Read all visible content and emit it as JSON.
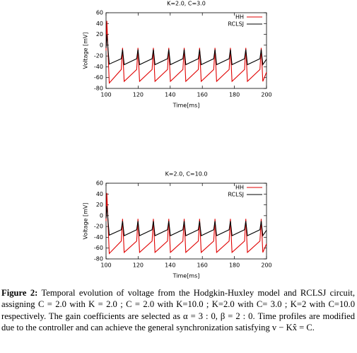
{
  "chart_data": [
    {
      "type": "line",
      "title": "K=2.0, C=3.0",
      "x_label": "Time[ms]",
      "y_label": "Voltage [mV]",
      "x": [
        100,
        100.5,
        102,
        109.5,
        110.3,
        111.3,
        119.1,
        119.9,
        120.9,
        128.7,
        129.5,
        130.5,
        138.3,
        139.1,
        140.1,
        147.9,
        148.7,
        149.7,
        157.5,
        158.3,
        159.3,
        167.1,
        167.9,
        168.9,
        176.7,
        177.5,
        178.5,
        186.3,
        187.1,
        188.1,
        195.9,
        196.7,
        197.7,
        200
      ],
      "series": [
        {
          "name": "HH",
          "color": "#e00000",
          "values": [
            -10,
            45,
            -70,
            -45,
            -5,
            -67,
            -45,
            -5,
            -67,
            -45,
            -5,
            -67,
            -45,
            -5,
            -67,
            -45,
            -5,
            -67,
            -45,
            -5,
            -67,
            -45,
            -5,
            -67,
            -45,
            -5,
            -67,
            -45,
            -5,
            -67,
            -45,
            -5,
            -67,
            -50
          ]
        },
        {
          "name": "RCLSJ",
          "color": "#000000",
          "values": [
            -5,
            20,
            -35,
            -25,
            -8,
            -36,
            -25,
            -8,
            -36,
            -25,
            -8,
            -36,
            -25,
            -8,
            -36,
            -25,
            -8,
            -36,
            -25,
            -8,
            -36,
            -25,
            -8,
            -36,
            -25,
            -8,
            -36,
            -25,
            -8,
            -36,
            -25,
            -8,
            -36,
            -26
          ]
        }
      ],
      "xlim": [
        100,
        200
      ],
      "xticks": [
        100,
        120,
        140,
        160,
        180,
        200
      ],
      "ylim": [
        -80,
        60
      ],
      "yticks": [
        -80,
        -60,
        -40,
        -20,
        0,
        20,
        40,
        60
      ],
      "legend": "top-right"
    },
    {
      "type": "line",
      "title": "K=2.0, C=10.0",
      "x_label": "Time[ms]",
      "y_label": "Voltage [mV]",
      "x": [
        100,
        100.5,
        102,
        109.5,
        110.3,
        111.3,
        119.1,
        119.9,
        120.9,
        128.7,
        129.5,
        130.5,
        138.3,
        139.1,
        140.1,
        147.9,
        148.7,
        149.7,
        157.5,
        158.3,
        159.3,
        167.1,
        167.9,
        168.9,
        176.7,
        177.5,
        178.5,
        186.3,
        187.1,
        188.1,
        195.9,
        196.7,
        197.7,
        200
      ],
      "series": [
        {
          "name": "HH",
          "color": "#e00000",
          "values": [
            -10,
            42,
            -70,
            -47,
            -6,
            -68,
            -47,
            -6,
            -68,
            -47,
            -6,
            -68,
            -47,
            -6,
            -68,
            -47,
            -6,
            -68,
            -47,
            -6,
            -68,
            -47,
            -6,
            -68,
            -47,
            -6,
            -68,
            -47,
            -6,
            -68,
            -47,
            -6,
            -68,
            -52
          ]
        },
        {
          "name": "RCLSJ",
          "color": "#000000",
          "values": [
            -5,
            18,
            -36,
            -26,
            -10,
            -37,
            -26,
            -10,
            -37,
            -26,
            -10,
            -37,
            -26,
            -10,
            -37,
            -26,
            -10,
            -37,
            -26,
            -10,
            -37,
            -26,
            -10,
            -37,
            -26,
            -10,
            -37,
            -26,
            -10,
            -37,
            -26,
            -10,
            -37,
            -27
          ]
        }
      ],
      "xlim": [
        100,
        200
      ],
      "xticks": [
        100,
        120,
        140,
        160,
        180,
        200
      ],
      "ylim": [
        -80,
        60
      ],
      "yticks": [
        -80,
        -60,
        -40,
        -20,
        0,
        20,
        40,
        60
      ],
      "legend": "top-right"
    }
  ],
  "caption": {
    "label": "Figure 2:",
    "text": "Temporal evolution of voltage from the Hodgkin-Huxley model and RCLSJ circuit, assigning C = 2.0 with K = 2.0 ; C = 2.0 with K=10.0 ; K=2.0 with C= 3.0 ; K=2 with C=10.0 respectively. The gain coefficients are selected as α = 3 : 0, β = 2 : 0. Time profiles are modified due to the controller and can achieve the general synchronization satisfying v − Kx̂ = C."
  }
}
